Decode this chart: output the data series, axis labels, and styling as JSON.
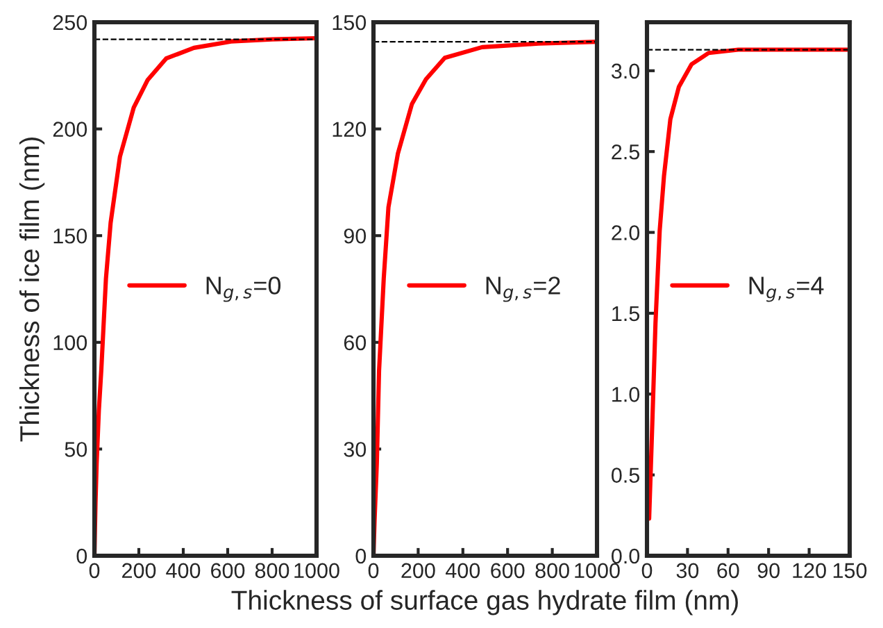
{
  "chart_data": [
    {
      "type": "line",
      "ylabel": "Thickness of ice film (nm)",
      "xlim": [
        0,
        1000
      ],
      "ylim": [
        0,
        250
      ],
      "xticks": [
        0,
        200,
        400,
        600,
        800,
        1000
      ],
      "yticks": [
        0,
        50,
        100,
        150,
        200,
        250
      ],
      "legend": "center",
      "grid": false,
      "ref_lines": [
        {
          "axis": "y",
          "value": 242,
          "color": "#000000",
          "line_style": "dashed"
        }
      ],
      "series": [
        {
          "name": "N$_{g,s}$=0",
          "color": "#ff0000",
          "x": [
            0,
            5,
            10,
            20,
            31,
            52,
            73,
            115,
            177,
            240,
            323,
            448,
            615,
            800,
            1000
          ],
          "values": [
            0,
            25,
            43,
            68,
            87,
            130,
            156,
            187,
            210,
            223,
            233,
            238,
            241,
            242,
            242.5
          ]
        }
      ]
    },
    {
      "type": "line",
      "xlabel": "Thickness of surface gas hydrate film (nm)",
      "xlim": [
        0,
        1000
      ],
      "ylim": [
        0,
        150
      ],
      "xticks": [
        0,
        200,
        400,
        600,
        800,
        1000
      ],
      "yticks": [
        0,
        30,
        60,
        90,
        120,
        150
      ],
      "legend": "center",
      "grid": false,
      "ref_lines": [
        {
          "axis": "y",
          "value": 144.5,
          "color": "#000000",
          "line_style": "dashed"
        }
      ],
      "series": [
        {
          "name": "N$_{g,s}$=2",
          "color": "#ff0000",
          "x": [
            0,
            5,
            15,
            25,
            46,
            67,
            109,
            172,
            235,
            319,
            486,
            738,
            1000
          ],
          "values": [
            0,
            10,
            26,
            52,
            78,
            98,
            113,
            127,
            134,
            140,
            143,
            144,
            144.5
          ]
        }
      ]
    },
    {
      "type": "line",
      "xlim": [
        0,
        150
      ],
      "ylim": [
        0,
        3.3
      ],
      "xticks": [
        0,
        30,
        60,
        90,
        120,
        150
      ],
      "yticks": [
        {
          "value": 0,
          "label": "0.0"
        },
        {
          "value": 0.5,
          "label": "0.5"
        },
        {
          "value": 1,
          "label": "1.0"
        },
        {
          "value": 1.5,
          "label": "1.5"
        },
        {
          "value": 2,
          "label": "2.0"
        },
        {
          "value": 2.5,
          "label": "2.5"
        },
        {
          "value": 3,
          "label": "3.0"
        }
      ],
      "legend": "center",
      "grid": false,
      "ref_lines": [
        {
          "axis": "y",
          "value": 3.13,
          "color": "#000000",
          "line_style": "dashed"
        }
      ],
      "series": [
        {
          "name": "N$_{g,s}$=4",
          "color": "#ff0000",
          "x": [
            1.6,
            4.1,
            6.3,
            9.4,
            12.6,
            17.3,
            23.6,
            33,
            45.6,
            67.6,
            150
          ],
          "values": [
            0.23,
            0.86,
            1.44,
            2.01,
            2.35,
            2.7,
            2.9,
            3.04,
            3.11,
            3.13,
            3.13
          ]
        }
      ]
    }
  ]
}
